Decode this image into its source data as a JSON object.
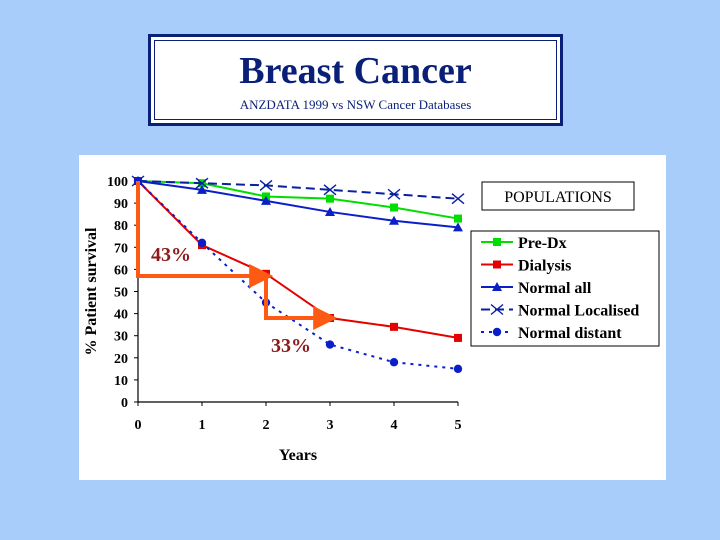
{
  "slide": {
    "title": "Breast Cancer",
    "subtitle": "ANZDATA 1999 vs NSW Cancer  Databases"
  },
  "chart_data": {
    "type": "line",
    "xlabel": "Years",
    "ylabel": "% Patient survival",
    "x": [
      0,
      1,
      2,
      3,
      4,
      5
    ],
    "x_ticks": [
      "0",
      "1",
      "2",
      "3",
      "4",
      "5"
    ],
    "y_ticks": [
      "0",
      "10",
      "20",
      "30",
      "40",
      "50",
      "60",
      "70",
      "80",
      "90",
      "100"
    ],
    "xlim": [
      0,
      5
    ],
    "ylim": [
      0,
      100
    ],
    "legend_title": "POPULATIONS",
    "series": [
      {
        "name": "Pre-Dx",
        "values": [
          100,
          99,
          93,
          92,
          88,
          83
        ],
        "color": "#00dd00",
        "marker": "square",
        "dash": "solid"
      },
      {
        "name": "Dialysis",
        "values": [
          100,
          71,
          58,
          38,
          34,
          29
        ],
        "color": "#e50000",
        "marker": "square",
        "dash": "solid"
      },
      {
        "name": "Normal all",
        "values": [
          100,
          96,
          91,
          86,
          82,
          79
        ],
        "color": "#0a1fc8",
        "marker": "triangle",
        "dash": "solid"
      },
      {
        "name": "Normal Localised",
        "values": [
          100,
          99,
          98,
          96,
          94,
          92
        ],
        "color": "#0a1fa0",
        "marker": "x",
        "dash": "dashed"
      },
      {
        "name": "Normal distant",
        "values": [
          100,
          72,
          45,
          26,
          18,
          15
        ],
        "color": "#0a1fc8",
        "marker": "circle",
        "dash": "dotted"
      }
    ],
    "annotations": [
      {
        "label": "43%",
        "color": "#ff5a14",
        "from_x": 0,
        "from_y": 100,
        "corner_y": 57,
        "to_x": 2
      },
      {
        "label": "33%",
        "color": "#ff5a14",
        "from_x": 2,
        "from_y": 57,
        "corner_y": 38,
        "to_x": 3
      }
    ]
  }
}
